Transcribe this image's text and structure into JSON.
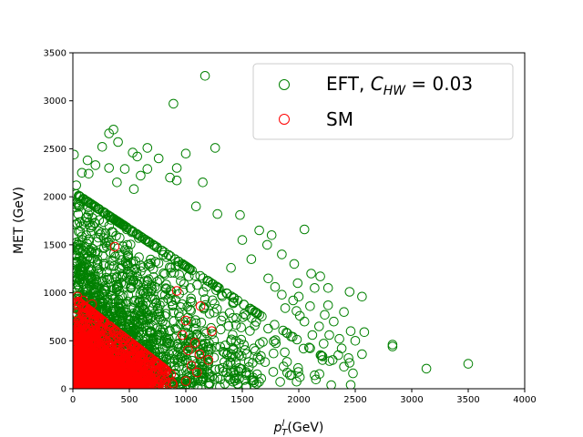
{
  "chart_data": {
    "type": "scatter",
    "title": "",
    "xlabel": "(GeV)",
    "xlabel_math": {
      "base": "p",
      "sub": "T",
      "sup": "l"
    },
    "ylabel": "MET (GeV)",
    "xlim": [
      0,
      4000
    ],
    "ylim": [
      0,
      3500
    ],
    "xticks": [
      0,
      500,
      1000,
      1500,
      2000,
      2500,
      3000,
      3500,
      4000
    ],
    "yticks": [
      0,
      500,
      1000,
      1500,
      2000,
      2500,
      3000,
      3500
    ],
    "grid": false,
    "legend_position": "top-right",
    "series": [
      {
        "name": "EFT, C_HW = 0.03",
        "legend_label": {
          "prefix": "EFT, ",
          "symbol": "C",
          "sub": "HW",
          "suffix": " = 0.03"
        },
        "color": "#008000",
        "marker": "open-circle",
        "bulk": {
          "density_x_scale": 480,
          "density_y_scale": 600,
          "x_max": 2300,
          "y_max": 2050,
          "count": 2400
        },
        "points": [
          [
            1170,
            3260
          ],
          [
            890,
            2970
          ],
          [
            360,
            2700
          ],
          [
            320,
            2660
          ],
          [
            400,
            2570
          ],
          [
            260,
            2520
          ],
          [
            660,
            2510
          ],
          [
            1260,
            2510
          ],
          [
            10,
            2440
          ],
          [
            530,
            2460
          ],
          [
            1000,
            2450
          ],
          [
            130,
            2380
          ],
          [
            570,
            2420
          ],
          [
            760,
            2400
          ],
          [
            200,
            2330
          ],
          [
            320,
            2300
          ],
          [
            460,
            2290
          ],
          [
            660,
            2290
          ],
          [
            920,
            2300
          ],
          [
            80,
            2250
          ],
          [
            140,
            2240
          ],
          [
            600,
            2220
          ],
          [
            860,
            2200
          ],
          [
            1150,
            2150
          ],
          [
            30,
            2120
          ],
          [
            390,
            2150
          ],
          [
            920,
            2170
          ],
          [
            540,
            2080
          ],
          [
            1090,
            1900
          ],
          [
            1280,
            1820
          ],
          [
            1480,
            1810
          ],
          [
            2050,
            1660
          ],
          [
            1650,
            1650
          ],
          [
            1760,
            1600
          ],
          [
            1500,
            1550
          ],
          [
            1720,
            1500
          ],
          [
            1850,
            1400
          ],
          [
            1960,
            1300
          ],
          [
            1580,
            1350
          ],
          [
            1400,
            1260
          ],
          [
            2110,
            1200
          ],
          [
            2190,
            1170
          ],
          [
            1730,
            1150
          ],
          [
            1990,
            1100
          ],
          [
            1790,
            1060
          ],
          [
            2260,
            1050
          ],
          [
            2140,
            1050
          ],
          [
            1850,
            980
          ],
          [
            2000,
            960
          ],
          [
            2450,
            1010
          ],
          [
            2560,
            960
          ],
          [
            1950,
            920
          ],
          [
            2260,
            870
          ],
          [
            2100,
            860
          ],
          [
            1880,
            840
          ],
          [
            1980,
            810
          ],
          [
            2400,
            800
          ],
          [
            2230,
            770
          ],
          [
            2010,
            760
          ],
          [
            2310,
            700
          ],
          [
            2050,
            700
          ],
          [
            2180,
            650
          ],
          [
            2460,
            600
          ],
          [
            2580,
            590
          ],
          [
            2120,
            560
          ],
          [
            2270,
            560
          ],
          [
            2360,
            520
          ],
          [
            2220,
            470
          ],
          [
            2500,
            500
          ],
          [
            2380,
            420
          ],
          [
            2830,
            460
          ],
          [
            2830,
            440
          ],
          [
            2560,
            360
          ],
          [
            2350,
            350
          ],
          [
            2440,
            320
          ],
          [
            2210,
            300
          ],
          [
            2300,
            300
          ],
          [
            2450,
            270
          ],
          [
            2400,
            230
          ],
          [
            3500,
            260
          ],
          [
            3130,
            210
          ],
          [
            2480,
            160
          ],
          [
            2140,
            140
          ],
          [
            2010,
            120
          ],
          [
            2460,
            40
          ],
          [
            1010,
            50
          ],
          [
            1130,
            90
          ]
        ]
      },
      {
        "name": "SM",
        "color": "#ff0000",
        "marker": "open-circle",
        "bulk": {
          "density_x_scale": 220,
          "density_y_scale": 200,
          "x_max": 900,
          "y_max": 950,
          "count": 2200
        },
        "points": [
          [
            370,
            1480
          ],
          [
            920,
            1020
          ],
          [
            1130,
            860
          ],
          [
            1000,
            710
          ],
          [
            1230,
            600
          ],
          [
            970,
            560
          ],
          [
            1080,
            480
          ],
          [
            1020,
            400
          ],
          [
            1120,
            360
          ],
          [
            1200,
            300
          ],
          [
            1050,
            240
          ],
          [
            1100,
            170
          ],
          [
            1000,
            80
          ],
          [
            40,
            960
          ],
          [
            90,
            920
          ],
          [
            170,
            880
          ]
        ]
      }
    ]
  }
}
